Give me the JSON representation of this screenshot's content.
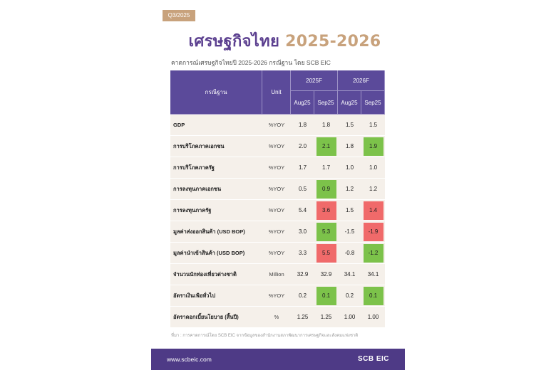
{
  "badge": "Q3/2025",
  "title": {
    "main": "เศรษฐกิจไทย",
    "years": "2025-2026"
  },
  "subtitle": "คาดการณ์เศรษฐกิจไทยปี 2025-2026 กรณีฐาน โดย SCB EIC",
  "table": {
    "header_label": "กรณีฐาน",
    "header_unit": "Unit",
    "year1": "2025F",
    "year2": "2026F",
    "sub": [
      "Aug25",
      "Sep25",
      "Aug25",
      "Sep25"
    ],
    "rows": [
      {
        "label": "GDP",
        "unit": "%YOY",
        "v": [
          "1.8",
          "1.8",
          "1.5",
          "1.5"
        ],
        "hl": [
          "",
          "",
          "",
          ""
        ]
      },
      {
        "label": "การบริโภคภาคเอกชน",
        "unit": "%YOY",
        "v": [
          "2.0",
          "2.1",
          "1.8",
          "1.9"
        ],
        "hl": [
          "",
          "up",
          "",
          "up"
        ]
      },
      {
        "label": "การบริโภคภาครัฐ",
        "unit": "%YOY",
        "v": [
          "1.7",
          "1.7",
          "1.0",
          "1.0"
        ],
        "hl": [
          "",
          "",
          "",
          ""
        ]
      },
      {
        "label": "การลงทุนภาคเอกชน",
        "unit": "%YOY",
        "v": [
          "0.5",
          "0.9",
          "1.2",
          "1.2"
        ],
        "hl": [
          "",
          "up",
          "",
          ""
        ]
      },
      {
        "label": "การลงทุนภาครัฐ",
        "unit": "%YOY",
        "v": [
          "5.4",
          "3.6",
          "1.5",
          "1.4"
        ],
        "hl": [
          "",
          "down",
          "",
          "down"
        ]
      },
      {
        "label": "มูลค่าส่งออกสินค้า (USD BOP)",
        "unit": "%YOY",
        "v": [
          "3.0",
          "5.3",
          "-1.5",
          "-1.9"
        ],
        "hl": [
          "",
          "up",
          "",
          "down"
        ]
      },
      {
        "label": "มูลค่านำเข้าสินค้า (USD BOP)",
        "unit": "%YOY",
        "v": [
          "3.3",
          "5.5",
          "-0.8",
          "-1.2"
        ],
        "hl": [
          "",
          "down",
          "",
          "up"
        ]
      },
      {
        "label": "จำนวนนักท่องเที่ยวต่างชาติ",
        "unit": "Million",
        "v": [
          "32.9",
          "32.9",
          "34.1",
          "34.1"
        ],
        "hl": [
          "",
          "",
          "",
          ""
        ]
      },
      {
        "label": "อัตราเงินเฟ้อทั่วไป",
        "unit": "%YOY",
        "v": [
          "0.2",
          "0.1",
          "0.2",
          "0.1"
        ],
        "hl": [
          "",
          "up",
          "",
          "up"
        ]
      },
      {
        "label": "อัตราดอกเบี้ยนโยบาย (สิ้นปี)",
        "unit": "%",
        "v": [
          "1.25",
          "1.25",
          "1.00",
          "1.00"
        ],
        "hl": [
          "",
          "",
          "",
          ""
        ]
      }
    ]
  },
  "source": "ที่มา : การคาดการณ์โดย SCB EIC จากข้อมูลของสำนักงานสภาพัฒนาการเศรษฐกิจและสังคมแห่งชาติ",
  "footer": {
    "url": "www.scbeic.com",
    "logo": "SCB EIC"
  },
  "colors": {
    "purple": "#5b3f8f",
    "gold": "#c8a27c",
    "up": "#7cc24a",
    "down": "#f06a6a"
  }
}
